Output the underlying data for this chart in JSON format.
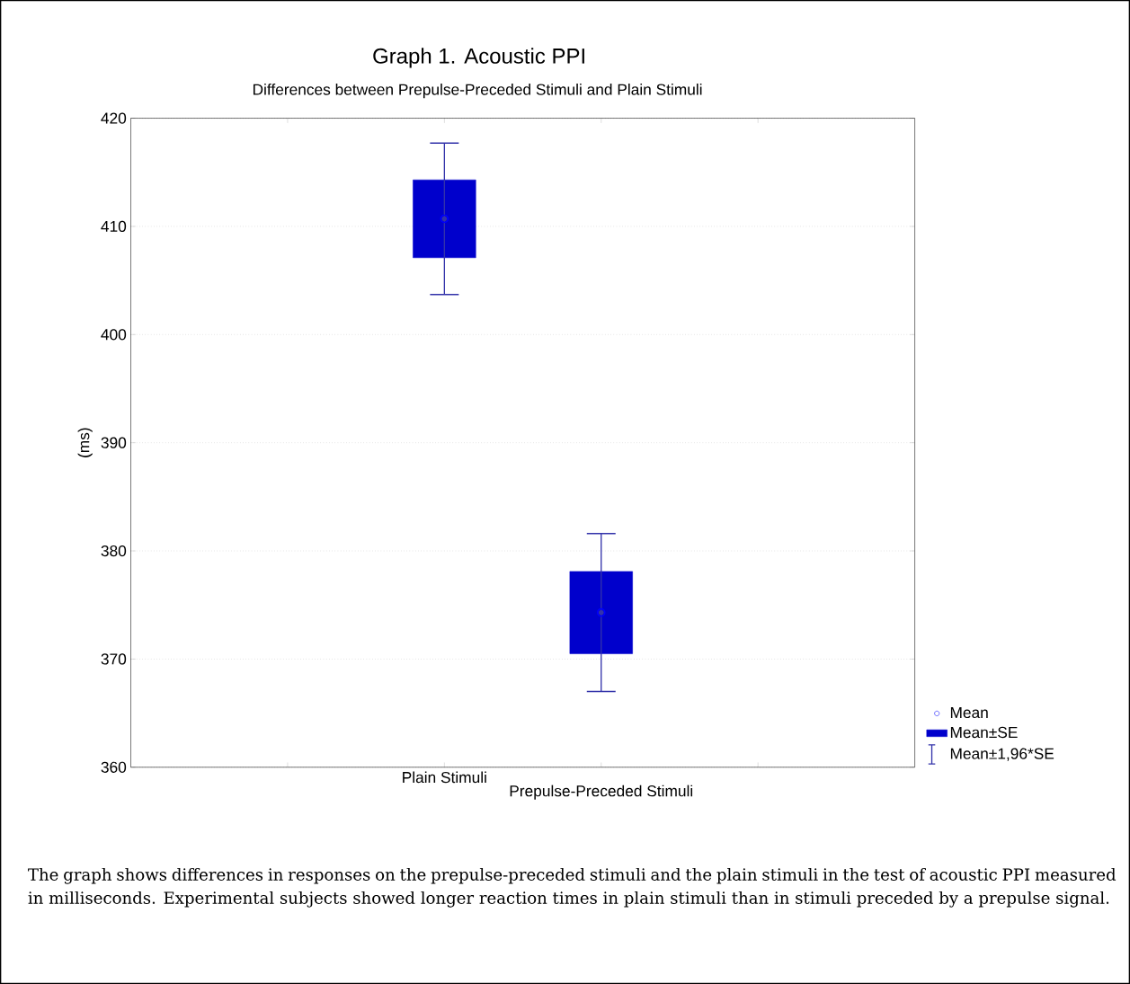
{
  "chart_data": {
    "type": "scatter",
    "title": "Graph 1. Acoustic PPI",
    "subtitle": "Differences between Prepulse-Preceded Stimuli and Plain Stimuli",
    "ylabel": "(ms)",
    "categories": [
      "Plain Stimuli",
      "Prepulse-Preceded Stimuli"
    ],
    "series": [
      {
        "name": "Mean",
        "marker": "circle",
        "color": "#0000ff",
        "values": [
          410.7,
          374.3
        ]
      },
      {
        "name": "Mean±SE",
        "type": "bar",
        "color": "#0000cc",
        "base": [
          407.1,
          370.5
        ],
        "values": [
          7.2,
          7.6
        ]
      },
      {
        "name": "Mean±1,96*SE",
        "type": "scatter",
        "marker": "none",
        "color": "#3333aa",
        "values": [
          410.7,
          374.3
        ],
        "errors": [
          7.0,
          7.3
        ]
      }
    ],
    "ylim": [
      360,
      420
    ],
    "yticks": [
      360,
      370,
      380,
      390,
      400,
      410,
      420
    ],
    "grid": "y",
    "legend": "bottom right",
    "annotations": [
      "The graph shows differences in responses on the prepulse-preceded stimuli and the plain stimuli in the test of acoustic PPI measured in milliseconds. Experimental subjects showed longer reaction times in plain stimuli than in stimuli preceded by a prepulse signal."
    ]
  }
}
